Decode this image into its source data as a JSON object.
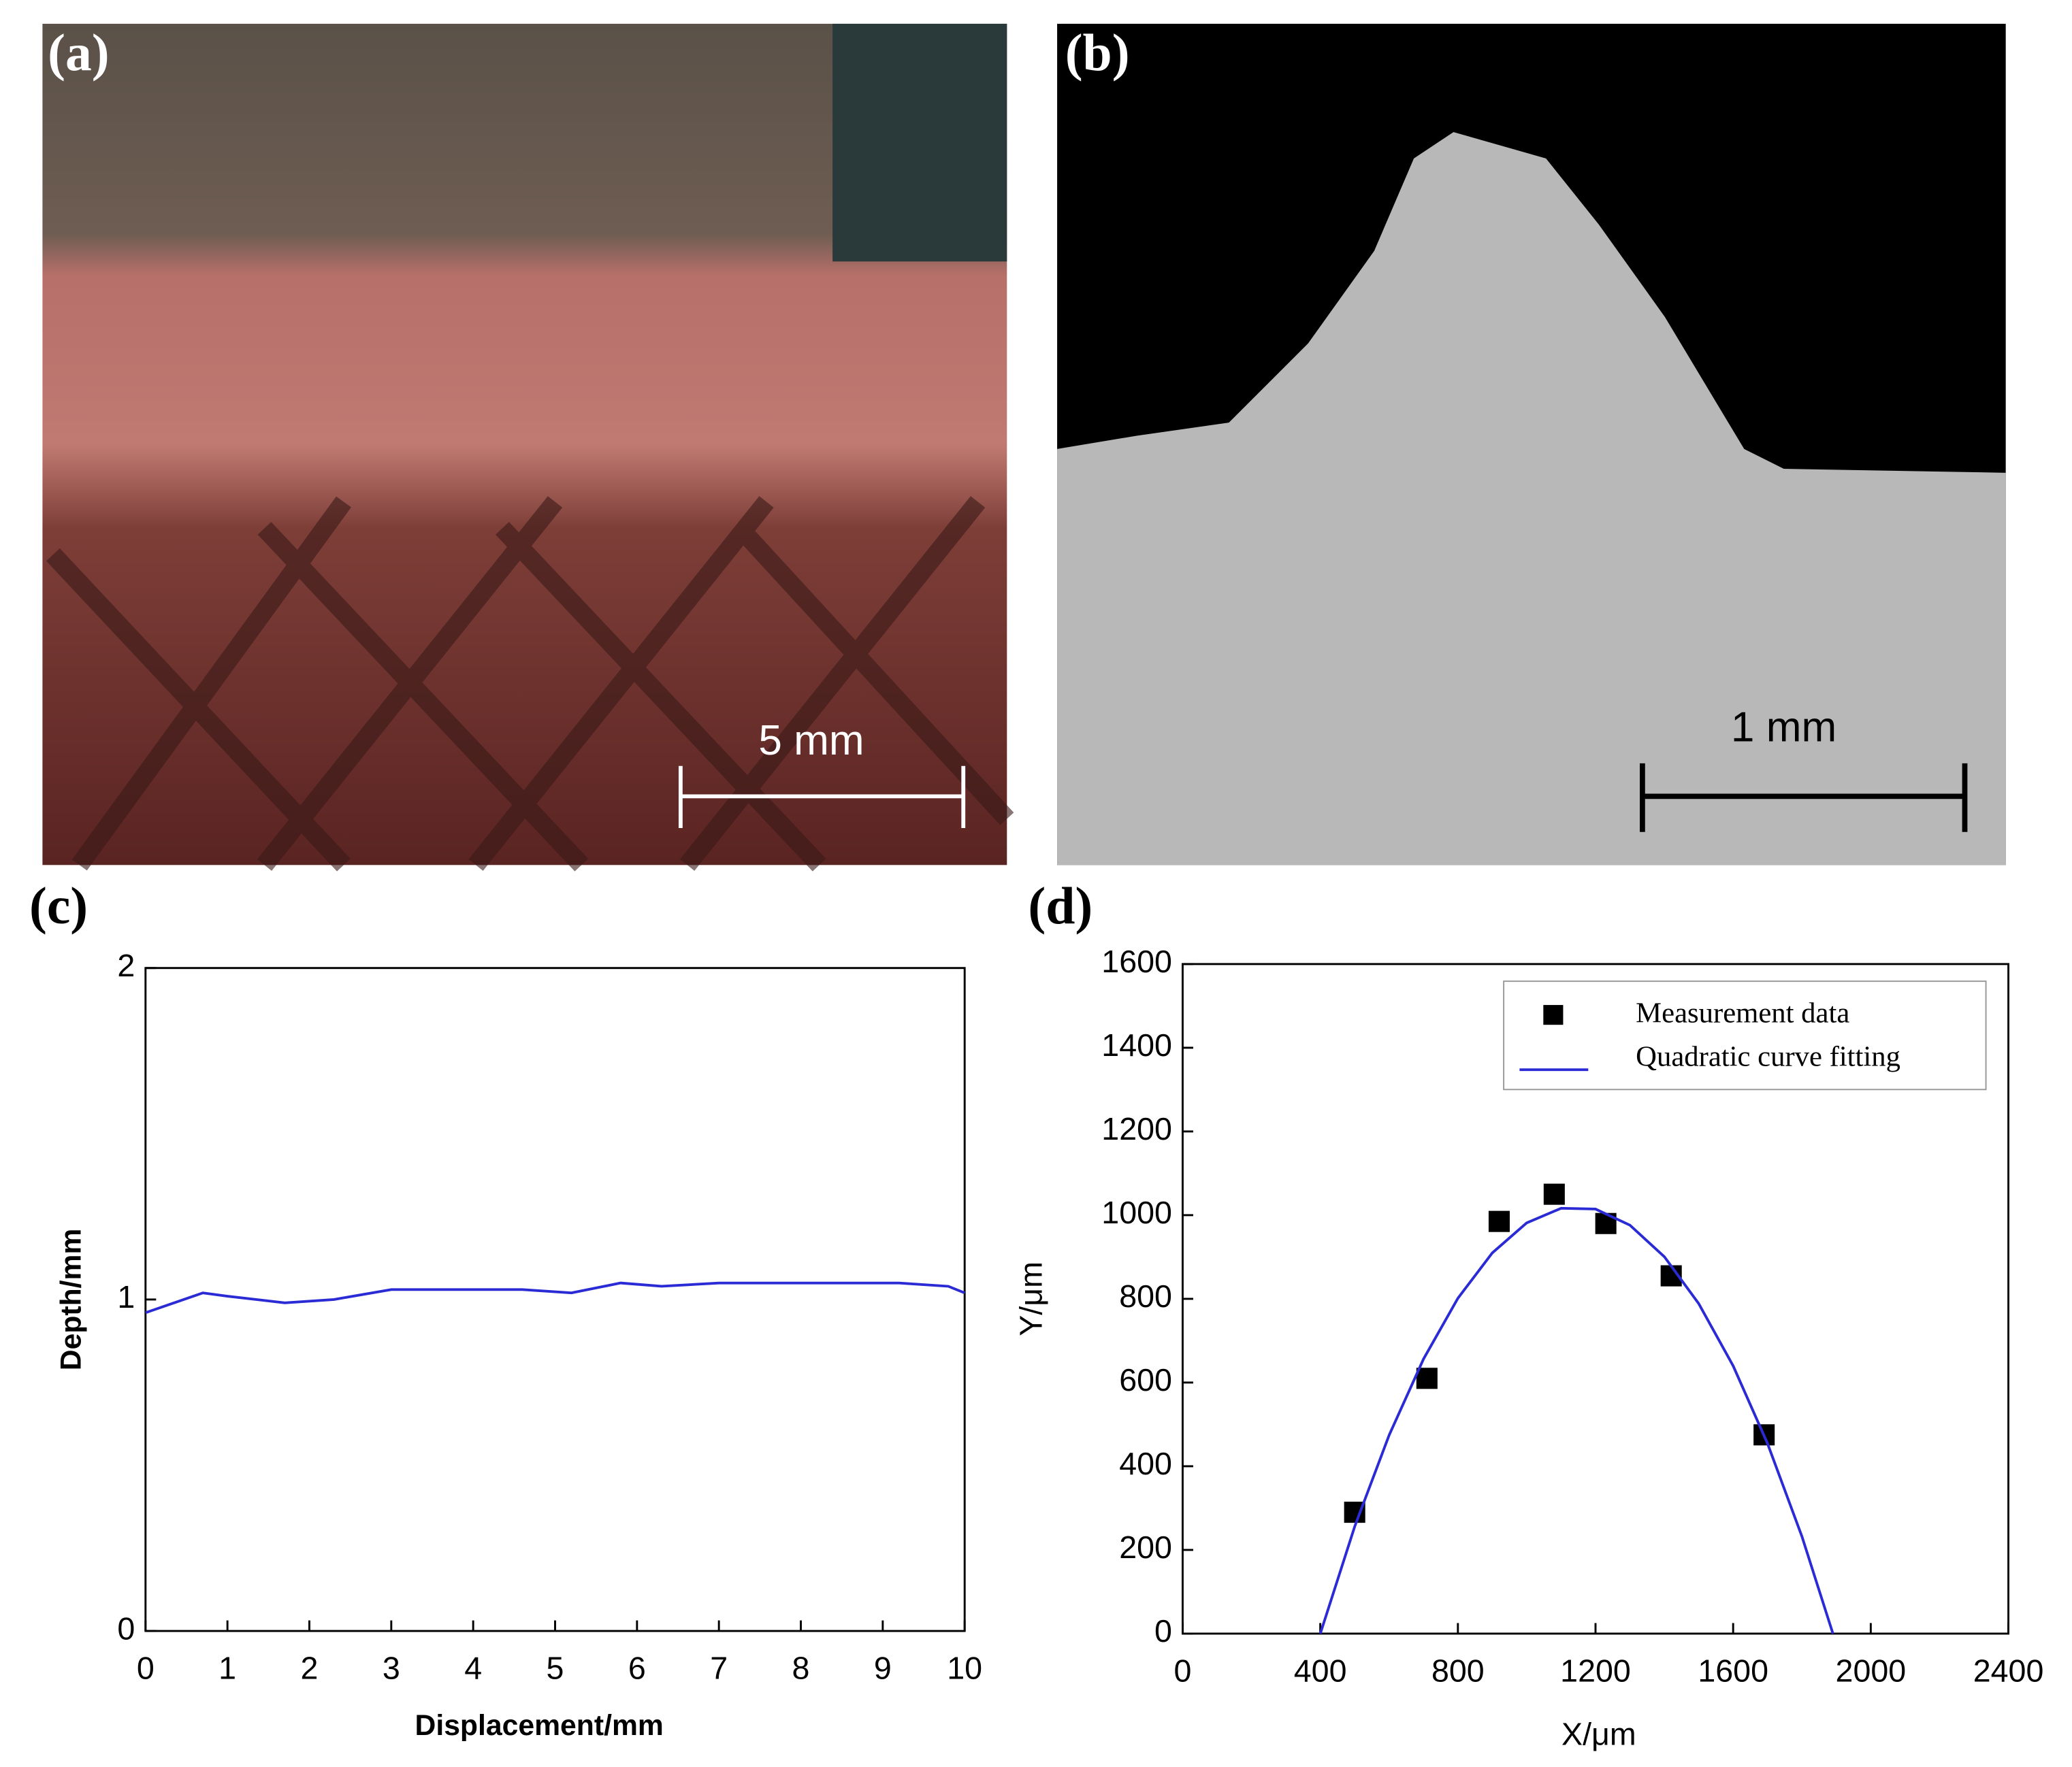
{
  "photos": [
    {
      "panel_label": "(a)",
      "scale_bar": "5 mm"
    },
    {
      "panel_label": "(b)",
      "scale_bar": "1 mm"
    }
  ],
  "chart_data": [
    {
      "type": "line",
      "panel_label": "(c)",
      "xlabel": "Displacement/mm",
      "ylabel": "Depth/mm",
      "x": [
        0,
        0.7,
        1,
        1.7,
        2.3,
        3,
        4,
        4.6,
        5.2,
        5.8,
        6.3,
        7,
        8,
        9.2,
        9.8,
        10
      ],
      "values": [
        0.96,
        1.02,
        1.01,
        0.99,
        1.0,
        1.03,
        1.03,
        1.03,
        1.02,
        1.05,
        1.04,
        1.05,
        1.05,
        1.05,
        1.04,
        1.02
      ],
      "color": "#2b2bd6",
      "xlim": [
        0,
        10
      ],
      "ylim": [
        0,
        2
      ],
      "xticks": [
        0,
        1,
        2,
        3,
        4,
        5,
        6,
        7,
        8,
        9,
        10
      ],
      "yticks": [
        0,
        1,
        2
      ]
    },
    {
      "type": "scatter",
      "panel_label": "(d)",
      "xlabel": "X/μm",
      "ylabel": "Y/μm",
      "legend": "upper right",
      "series": [
        {
          "name": "Measurement data",
          "type": "scatter",
          "color": "#000000",
          "x": [
            500,
            710,
            920,
            1080,
            1230,
            1420,
            1690
          ],
          "values": [
            290,
            610,
            985,
            1050,
            980,
            855,
            475
          ]
        },
        {
          "name": "Quadratic curve fitting",
          "type": "line",
          "color": "#2b2bd6",
          "x": [
            400,
            500,
            600,
            700,
            800,
            900,
            1000,
            1100,
            1200,
            1300,
            1400,
            1500,
            1600,
            1700,
            1800,
            1890
          ],
          "values": [
            0,
            255.5,
            474.2,
            656.2,
            801.4,
            909.8,
            981.5,
            1016.4,
            1014.6,
            976.0,
            900.6,
            788.5,
            639.6,
            454.0,
            231.6,
            0
          ]
        }
      ],
      "xlim": [
        0,
        2400
      ],
      "ylim": [
        0,
        1600
      ],
      "xticks": [
        0,
        400,
        800,
        1200,
        1600,
        2000,
        2400
      ],
      "yticks": [
        0,
        200,
        400,
        600,
        800,
        1000,
        1200,
        1400,
        1600
      ]
    }
  ]
}
